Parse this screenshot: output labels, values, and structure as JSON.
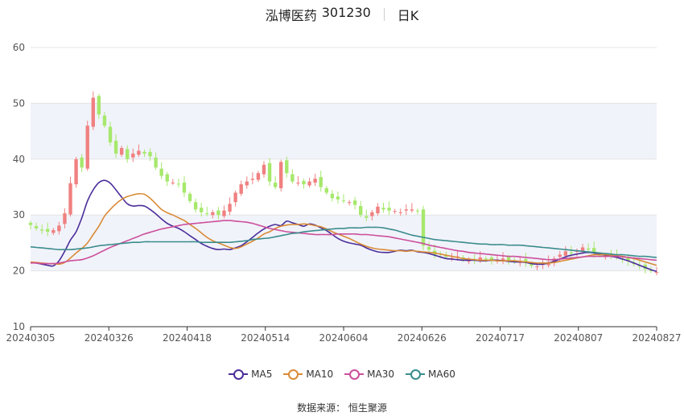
{
  "header": {
    "stock_name": "泓博医药",
    "stock_code": "301230",
    "period": "日K"
  },
  "legend": [
    {
      "name": "MA5",
      "color": "#4b2e9a"
    },
    {
      "name": "MA10",
      "color": "#d98b36"
    },
    {
      "name": "MA30",
      "color": "#cc4f9c"
    },
    {
      "name": "MA60",
      "color": "#3a8c8c"
    }
  ],
  "source": {
    "text": "数据来源：  恒生聚源"
  },
  "colors": {
    "up": "#f08080",
    "down": "#a6e86c",
    "band": "#f1f3fa",
    "grid": "#e3e3e3"
  },
  "chart_data": {
    "type": "candlestick",
    "ylim": [
      10,
      60
    ],
    "yticks": [
      10,
      20,
      30,
      40,
      50,
      60
    ],
    "x_tick_labels": [
      "20240305",
      "20240326",
      "20240418",
      "20240514",
      "20240604",
      "20240626",
      "20240717",
      "20240807",
      "20240827"
    ],
    "closes": [
      28.2,
      27.6,
      27.2,
      27.0,
      27.3,
      28.1,
      30.3,
      35.7,
      40.0,
      38.5,
      46.0,
      51.0,
      48.0,
      46.0,
      43.0,
      41.0,
      42.0,
      40.0,
      41.0,
      41.5,
      41.0,
      40.5,
      38.5,
      37.0,
      36.0,
      35.8,
      35.5,
      34.0,
      32.5,
      31.0,
      30.5,
      30.2,
      30.5,
      30.0,
      30.8,
      32.0,
      34.0,
      35.5,
      36.0,
      36.5,
      37.5,
      39.0,
      36.0,
      35.0,
      39.5,
      37.5,
      36.0,
      35.8,
      35.5,
      36.0,
      36.5,
      35.0,
      34.0,
      33.0,
      32.8,
      32.5,
      32.3,
      31.8,
      30.0,
      29.5,
      30.5,
      31.5,
      31.0,
      30.8,
      30.7,
      30.5,
      31.0,
      31.0,
      30.7,
      24.5,
      23.8,
      22.8,
      23.0,
      22.5,
      22.3,
      22.6,
      22.0,
      21.8,
      22.0,
      22.4,
      22.1,
      21.9,
      22.0,
      22.2,
      21.9,
      21.6,
      21.8,
      21.5,
      20.9,
      20.8,
      21.2,
      21.6,
      22.2,
      22.9,
      23.5,
      23.1,
      23.6,
      24.2,
      23.8,
      23.1,
      22.8,
      22.6,
      22.9,
      22.4,
      22.0,
      21.7,
      21.2,
      20.8,
      20.3,
      20.0,
      19.8
    ],
    "series": [
      {
        "name": "MA5",
        "values": [
          21.5,
          21.4,
          21.2,
          21.0,
          20.9,
          21.8,
          23.5,
          25.5,
          27.0,
          29.5,
          32.5,
          34.5,
          35.8,
          36.2,
          35.7,
          34.5,
          33.2,
          32.0,
          31.6,
          31.7,
          31.6,
          31.0,
          30.2,
          29.3,
          28.5,
          28.0,
          27.6,
          27.0,
          26.3,
          25.6,
          24.9,
          24.4,
          24.0,
          23.8,
          23.9,
          23.8,
          24.1,
          24.5,
          25.2,
          26.0,
          26.8,
          27.5,
          28.0,
          28.3,
          28.1,
          28.9,
          28.6,
          28.3,
          28.0,
          28.4,
          28.2,
          27.7,
          27.2,
          26.5,
          25.8,
          25.3,
          25.0,
          24.8,
          24.6,
          24.1,
          23.7,
          23.4,
          23.3,
          23.3,
          23.5,
          23.7,
          23.6,
          23.7,
          23.4,
          23.3,
          23.1,
          22.8,
          22.5,
          22.2,
          22.1,
          22.0,
          21.9,
          21.9,
          21.9,
          21.8,
          21.8,
          21.9,
          21.9,
          21.8,
          21.7,
          21.6,
          21.6,
          21.5,
          21.3,
          21.2,
          21.2,
          21.4,
          21.7,
          22.1,
          22.5,
          22.8,
          23.0,
          23.2,
          23.3,
          23.2,
          23.0,
          22.8,
          22.6,
          22.4,
          22.1,
          21.8,
          21.4,
          21.0,
          20.6,
          20.2,
          19.9
        ]
      },
      {
        "name": "MA10",
        "values": [
          21.6,
          21.5,
          21.4,
          21.3,
          21.3,
          21.2,
          21.5,
          22.3,
          23.2,
          24.0,
          25.0,
          26.5,
          28.0,
          29.8,
          31.0,
          32.0,
          32.8,
          33.3,
          33.6,
          33.8,
          33.7,
          33.0,
          32.0,
          31.0,
          30.4,
          30.0,
          29.5,
          29.0,
          28.3,
          27.6,
          26.8,
          26.0,
          25.4,
          25.0,
          24.6,
          24.2,
          24.0,
          24.3,
          24.8,
          25.3,
          25.9,
          26.6,
          27.0,
          27.6,
          28.0,
          28.2,
          28.3,
          28.3,
          28.4,
          28.3,
          28.1,
          27.9,
          27.5,
          27.0,
          26.6,
          26.2,
          25.8,
          25.3,
          24.8,
          24.4,
          24.1,
          23.9,
          23.8,
          23.7,
          23.6,
          23.6,
          23.5,
          23.6,
          23.5,
          23.4,
          23.3,
          23.2,
          23.0,
          22.8,
          22.6,
          22.4,
          22.2,
          22.1,
          22.0,
          21.9,
          21.9,
          21.9,
          21.8,
          21.8,
          21.8,
          21.8,
          21.7,
          21.6,
          21.5,
          21.4,
          21.4,
          21.4,
          21.5,
          21.7,
          21.9,
          22.1,
          22.3,
          22.5,
          22.7,
          22.9,
          22.9,
          22.9,
          22.8,
          22.7,
          22.6,
          22.4,
          22.2,
          21.9,
          21.6,
          21.3,
          21.0
        ]
      },
      {
        "name": "MA30",
        "values": [
          21.4,
          21.4,
          21.3,
          21.3,
          21.3,
          21.4,
          21.6,
          21.8,
          21.9,
          22.0,
          22.3,
          22.7,
          23.2,
          23.7,
          24.2,
          24.6,
          25.0,
          25.4,
          25.8,
          26.2,
          26.6,
          26.9,
          27.2,
          27.5,
          27.7,
          27.9,
          28.1,
          28.3,
          28.4,
          28.5,
          28.6,
          28.7,
          28.8,
          28.9,
          29.0,
          29.0,
          28.9,
          28.8,
          28.7,
          28.5,
          28.2,
          27.9,
          27.6,
          27.4,
          27.2,
          27.0,
          26.9,
          26.8,
          26.7,
          26.6,
          26.5,
          26.5,
          26.5,
          26.5,
          26.6,
          26.6,
          26.6,
          26.6,
          26.5,
          26.5,
          26.4,
          26.3,
          26.2,
          26.1,
          25.9,
          25.7,
          25.5,
          25.3,
          25.1,
          24.9,
          24.6,
          24.4,
          24.2,
          24.0,
          23.8,
          23.6,
          23.5,
          23.3,
          23.2,
          23.1,
          23.0,
          22.9,
          22.8,
          22.7,
          22.6,
          22.6,
          22.5,
          22.4,
          22.3,
          22.2,
          22.1,
          22.0,
          22.0,
          22.1,
          22.2,
          22.3,
          22.4,
          22.5,
          22.6,
          22.6,
          22.6,
          22.6,
          22.6,
          22.6,
          22.5,
          22.4,
          22.3,
          22.2,
          22.1,
          22.0,
          21.9
        ]
      },
      {
        "name": "MA60",
        "values": [
          24.3,
          24.2,
          24.1,
          24.0,
          23.9,
          23.8,
          23.8,
          23.8,
          23.9,
          24.0,
          24.1,
          24.3,
          24.5,
          24.6,
          24.7,
          24.8,
          24.9,
          25.0,
          25.1,
          25.1,
          25.2,
          25.2,
          25.2,
          25.2,
          25.2,
          25.2,
          25.2,
          25.2,
          25.2,
          25.2,
          25.1,
          25.1,
          25.1,
          25.1,
          25.1,
          25.1,
          25.2,
          25.3,
          25.4,
          25.6,
          25.7,
          25.8,
          25.9,
          26.1,
          26.3,
          26.5,
          26.7,
          26.8,
          27.0,
          27.1,
          27.2,
          27.3,
          27.4,
          27.5,
          27.6,
          27.6,
          27.7,
          27.7,
          27.7,
          27.8,
          27.8,
          27.8,
          27.7,
          27.5,
          27.3,
          27.0,
          26.7,
          26.4,
          26.2,
          26.0,
          25.8,
          25.6,
          25.5,
          25.4,
          25.3,
          25.2,
          25.1,
          25.0,
          24.9,
          24.8,
          24.8,
          24.7,
          24.7,
          24.7,
          24.6,
          24.6,
          24.6,
          24.5,
          24.4,
          24.3,
          24.2,
          24.1,
          24.0,
          23.9,
          23.8,
          23.7,
          23.6,
          23.5,
          23.4,
          23.3,
          23.2,
          23.1,
          23.0,
          22.9,
          22.9,
          22.8,
          22.7,
          22.6,
          22.6,
          22.5,
          22.4
        ]
      }
    ]
  }
}
